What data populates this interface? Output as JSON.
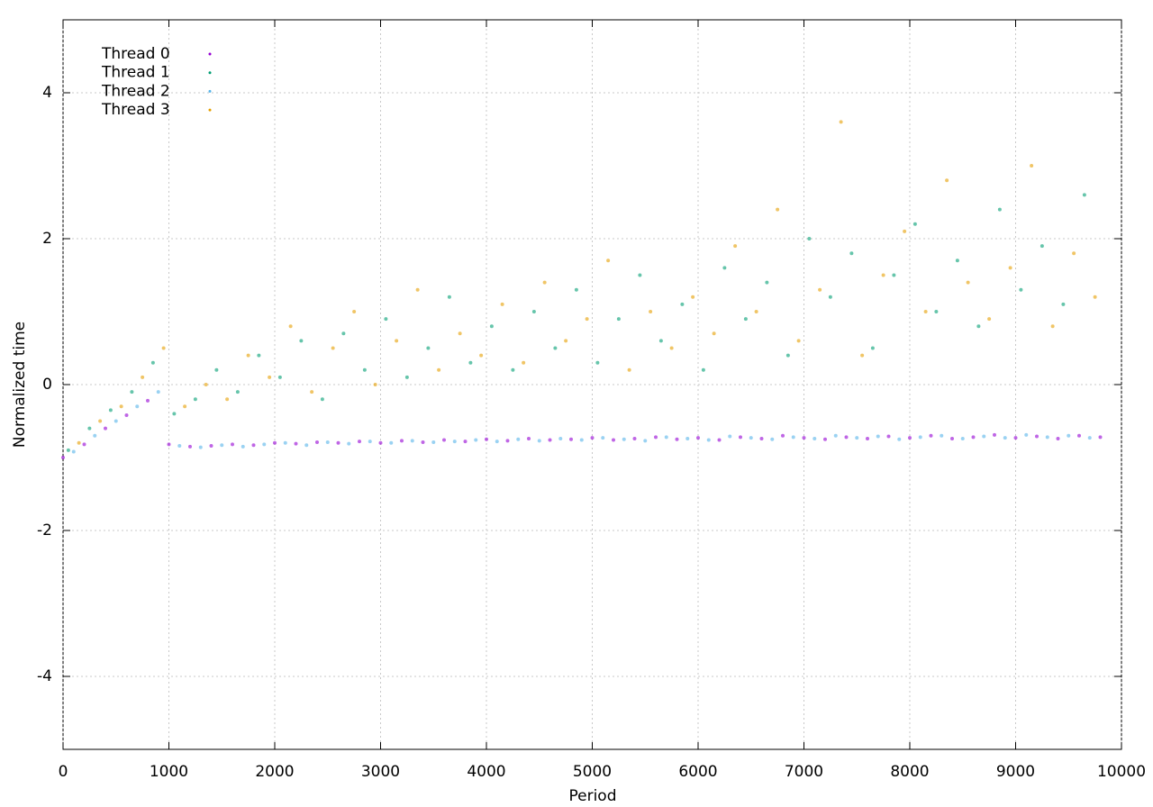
{
  "chart_data": {
    "type": "scatter",
    "xlabel": "Period",
    "ylabel": "Normalized time",
    "xlim": [
      0,
      10000
    ],
    "ylim": [
      -5,
      5
    ],
    "xticks": [
      0,
      1000,
      2000,
      3000,
      4000,
      5000,
      6000,
      7000,
      8000,
      9000,
      10000
    ],
    "yticks": [
      -4,
      -2,
      0,
      2,
      4
    ],
    "grid": true,
    "legend": "upper-left",
    "series": [
      {
        "name": "Thread 0",
        "color": "#9400d3",
        "x": [
          0,
          200,
          400,
          600,
          800,
          1000,
          1200,
          1400,
          1600,
          1800,
          2000,
          2200,
          2400,
          2600,
          2800,
          3000,
          3200,
          3400,
          3600,
          3800,
          4000,
          4200,
          4400,
          4600,
          4800,
          5000,
          5200,
          5400,
          5600,
          5800,
          6000,
          6200,
          6400,
          6600,
          6800,
          7000,
          7200,
          7400,
          7600,
          7800,
          8000,
          8200,
          8400,
          8600,
          8800,
          9000,
          9200,
          9400,
          9600,
          9800
        ],
        "values": [
          -1.0,
          -0.82,
          -0.6,
          -0.42,
          -0.22,
          -0.82,
          -0.85,
          -0.84,
          -0.82,
          -0.83,
          -0.8,
          -0.81,
          -0.79,
          -0.8,
          -0.78,
          -0.8,
          -0.77,
          -0.79,
          -0.76,
          -0.78,
          -0.75,
          -0.77,
          -0.74,
          -0.76,
          -0.75,
          -0.73,
          -0.76,
          -0.74,
          -0.72,
          -0.75,
          -0.73,
          -0.76,
          -0.72,
          -0.74,
          -0.7,
          -0.73,
          -0.75,
          -0.72,
          -0.74,
          -0.71,
          -0.73,
          -0.7,
          -0.74,
          -0.72,
          -0.69,
          -0.73,
          -0.71,
          -0.74,
          -0.7,
          -0.72
        ]
      },
      {
        "name": "Thread 1",
        "color": "#009e73",
        "x": [
          50,
          250,
          450,
          650,
          850,
          1050,
          1250,
          1450,
          1650,
          1850,
          2050,
          2250,
          2450,
          2650,
          2850,
          3050,
          3250,
          3450,
          3650,
          3850,
          4050,
          4250,
          4450,
          4650,
          4850,
          5050,
          5250,
          5450,
          5650,
          5850,
          6050,
          6250,
          6450,
          6650,
          6850,
          7050,
          7250,
          7450,
          7650,
          7850,
          8050,
          8250,
          8450,
          8650,
          8850,
          9050,
          9250,
          9450,
          9650
        ],
        "values": [
          -0.9,
          -0.6,
          -0.35,
          -0.1,
          0.3,
          -0.4,
          -0.2,
          0.2,
          -0.1,
          0.4,
          0.1,
          0.6,
          -0.2,
          0.7,
          0.2,
          0.9,
          0.1,
          0.5,
          1.2,
          0.3,
          0.8,
          0.2,
          1.0,
          0.5,
          1.3,
          0.3,
          0.9,
          1.5,
          0.6,
          1.1,
          0.2,
          1.6,
          0.9,
          1.4,
          0.4,
          2.0,
          1.2,
          1.8,
          0.5,
          1.5,
          2.2,
          1.0,
          1.7,
          0.8,
          2.4,
          1.3,
          1.9,
          1.1,
          2.6
        ]
      },
      {
        "name": "Thread 2",
        "color": "#56b4e9",
        "x": [
          100,
          300,
          500,
          700,
          900,
          1100,
          1300,
          1500,
          1700,
          1900,
          2100,
          2300,
          2500,
          2700,
          2900,
          3100,
          3300,
          3500,
          3700,
          3900,
          4100,
          4300,
          4500,
          4700,
          4900,
          5100,
          5300,
          5500,
          5700,
          5900,
          6100,
          6300,
          6500,
          6700,
          6900,
          7100,
          7300,
          7500,
          7700,
          7900,
          8100,
          8300,
          8500,
          8700,
          8900,
          9100,
          9300,
          9500,
          9700
        ],
        "values": [
          -0.92,
          -0.7,
          -0.5,
          -0.3,
          -0.1,
          -0.84,
          -0.86,
          -0.83,
          -0.85,
          -0.82,
          -0.8,
          -0.83,
          -0.79,
          -0.81,
          -0.78,
          -0.8,
          -0.77,
          -0.79,
          -0.78,
          -0.76,
          -0.78,
          -0.75,
          -0.77,
          -0.74,
          -0.76,
          -0.73,
          -0.75,
          -0.77,
          -0.72,
          -0.74,
          -0.76,
          -0.71,
          -0.73,
          -0.75,
          -0.72,
          -0.74,
          -0.7,
          -0.73,
          -0.71,
          -0.75,
          -0.72,
          -0.7,
          -0.74,
          -0.71,
          -0.73,
          -0.69,
          -0.72,
          -0.7,
          -0.73
        ]
      },
      {
        "name": "Thread 3",
        "color": "#e69f00",
        "x": [
          150,
          350,
          550,
          750,
          950,
          1150,
          1350,
          1550,
          1750,
          1950,
          2150,
          2350,
          2550,
          2750,
          2950,
          3150,
          3350,
          3550,
          3750,
          3950,
          4150,
          4350,
          4550,
          4750,
          4950,
          5150,
          5350,
          5550,
          5750,
          5950,
          6150,
          6350,
          6550,
          6750,
          6950,
          7150,
          7350,
          7550,
          7750,
          7950,
          8150,
          8350,
          8550,
          8750,
          8950,
          9150,
          9350,
          9550,
          9750
        ],
        "values": [
          -0.8,
          -0.5,
          -0.3,
          0.1,
          0.5,
          -0.3,
          0.0,
          -0.2,
          0.4,
          0.1,
          0.8,
          -0.1,
          0.5,
          1.0,
          0.0,
          0.6,
          1.3,
          0.2,
          0.7,
          0.4,
          1.1,
          0.3,
          1.4,
          0.6,
          0.9,
          1.7,
          0.2,
          1.0,
          0.5,
          1.2,
          0.7,
          1.9,
          1.0,
          2.4,
          0.6,
          1.3,
          3.6,
          0.4,
          1.5,
          2.1,
          1.0,
          2.8,
          1.4,
          0.9,
          1.6,
          3.0,
          0.8,
          1.8,
          1.2
        ]
      }
    ]
  }
}
